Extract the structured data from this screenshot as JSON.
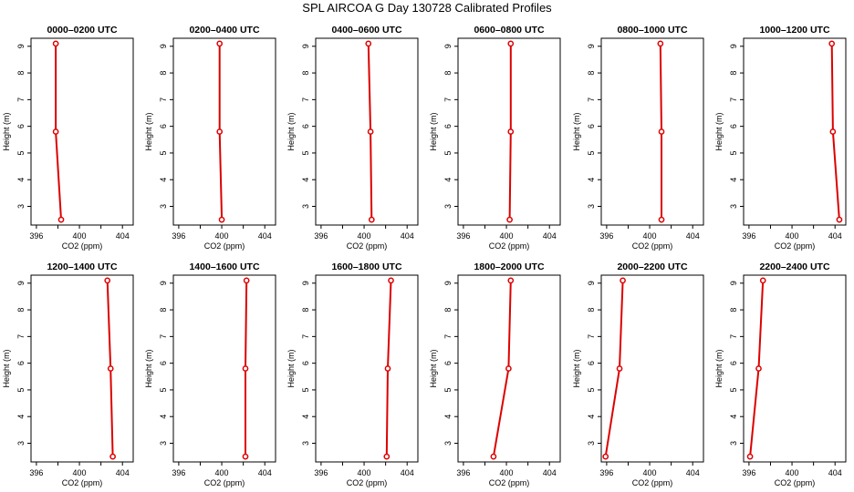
{
  "title": "SPL AIRCOA G  Day 130728  Calibrated Profiles",
  "chart_data": [
    {
      "type": "line",
      "title": "0000–0200 UTC",
      "xlabel": "CO2 (ppm)",
      "ylabel": "Height (m)",
      "xlim": [
        395.5,
        405
      ],
      "ylim": [
        2.3,
        9.3
      ],
      "xticks": [
        "396",
        "400",
        "404"
      ],
      "yticks": [
        "3",
        "4",
        "5",
        "6",
        "7",
        "8",
        "9"
      ],
      "series": [
        {
          "x": [
            398.3,
            397.8,
            397.8
          ],
          "y": [
            2.5,
            5.8,
            9.1
          ]
        }
      ]
    },
    {
      "type": "line",
      "title": "0200–0400 UTC",
      "xlabel": "CO2 (ppm)",
      "ylabel": "Height (m)",
      "xlim": [
        395.5,
        405
      ],
      "ylim": [
        2.3,
        9.3
      ],
      "xticks": [
        "396",
        "400",
        "404"
      ],
      "yticks": [
        "3",
        "4",
        "5",
        "6",
        "7",
        "8",
        "9"
      ],
      "series": [
        {
          "x": [
            400.0,
            399.8,
            399.8
          ],
          "y": [
            2.5,
            5.8,
            9.1
          ]
        }
      ]
    },
    {
      "type": "line",
      "title": "0400–0600 UTC",
      "xlabel": "CO2 (ppm)",
      "ylabel": "Height (m)",
      "xlim": [
        395.5,
        405
      ],
      "ylim": [
        2.3,
        9.3
      ],
      "xticks": [
        "396",
        "400",
        "404"
      ],
      "yticks": [
        "3",
        "4",
        "5",
        "6",
        "7",
        "8",
        "9"
      ],
      "series": [
        {
          "x": [
            400.7,
            400.6,
            400.4
          ],
          "y": [
            2.5,
            5.8,
            9.1
          ]
        }
      ]
    },
    {
      "type": "line",
      "title": "0600–0800 UTC",
      "xlabel": "CO2 (ppm)",
      "ylabel": "Height (m)",
      "xlim": [
        395.5,
        405
      ],
      "ylim": [
        2.3,
        9.3
      ],
      "xticks": [
        "396",
        "400",
        "404"
      ],
      "yticks": [
        "3",
        "4",
        "5",
        "6",
        "7",
        "8",
        "9"
      ],
      "series": [
        {
          "x": [
            400.3,
            400.4,
            400.4
          ],
          "y": [
            2.5,
            5.8,
            9.1
          ]
        }
      ]
    },
    {
      "type": "line",
      "title": "0800–1000 UTC",
      "xlabel": "CO2 (ppm)",
      "ylabel": "Height (m)",
      "xlim": [
        395.5,
        405
      ],
      "ylim": [
        2.3,
        9.3
      ],
      "xticks": [
        "396",
        "400",
        "404"
      ],
      "yticks": [
        "3",
        "4",
        "5",
        "6",
        "7",
        "8",
        "9"
      ],
      "series": [
        {
          "x": [
            401.1,
            401.1,
            401.0
          ],
          "y": [
            2.5,
            5.8,
            9.1
          ]
        }
      ]
    },
    {
      "type": "line",
      "title": "1000–1200 UTC",
      "xlabel": "CO2 (ppm)",
      "ylabel": "Height (m)",
      "xlim": [
        395.5,
        405
      ],
      "ylim": [
        2.3,
        9.3
      ],
      "xticks": [
        "396",
        "400",
        "404"
      ],
      "yticks": [
        "3",
        "4",
        "5",
        "6",
        "7",
        "8",
        "9"
      ],
      "series": [
        {
          "x": [
            404.4,
            403.8,
            403.7
          ],
          "y": [
            2.5,
            5.8,
            9.1
          ]
        }
      ]
    },
    {
      "type": "line",
      "title": "1200–1400 UTC",
      "xlabel": "CO2 (ppm)",
      "ylabel": "Height (m)",
      "xlim": [
        395.5,
        405
      ],
      "ylim": [
        2.3,
        9.3
      ],
      "xticks": [
        "396",
        "400",
        "404"
      ],
      "yticks": [
        "3",
        "4",
        "5",
        "6",
        "7",
        "8",
        "9"
      ],
      "series": [
        {
          "x": [
            403.1,
            402.9,
            402.6
          ],
          "y": [
            2.5,
            5.8,
            9.1
          ]
        }
      ]
    },
    {
      "type": "line",
      "title": "1400–1600 UTC",
      "xlabel": "CO2 (ppm)",
      "ylabel": "Height (m)",
      "xlim": [
        395.5,
        405
      ],
      "ylim": [
        2.3,
        9.3
      ],
      "xticks": [
        "396",
        "400",
        "404"
      ],
      "yticks": [
        "3",
        "4",
        "5",
        "6",
        "7",
        "8",
        "9"
      ],
      "series": [
        {
          "x": [
            402.2,
            402.2,
            402.3
          ],
          "y": [
            2.5,
            5.8,
            9.1
          ]
        }
      ]
    },
    {
      "type": "line",
      "title": "1600–1800 UTC",
      "xlabel": "CO2 (ppm)",
      "ylabel": "Height (m)",
      "xlim": [
        395.5,
        405
      ],
      "ylim": [
        2.3,
        9.3
      ],
      "xticks": [
        "396",
        "400",
        "404"
      ],
      "yticks": [
        "3",
        "4",
        "5",
        "6",
        "7",
        "8",
        "9"
      ],
      "series": [
        {
          "x": [
            402.1,
            402.2,
            402.5
          ],
          "y": [
            2.5,
            5.8,
            9.1
          ]
        }
      ]
    },
    {
      "type": "line",
      "title": "1800–2000 UTC",
      "xlabel": "CO2 (ppm)",
      "ylabel": "Height (m)",
      "xlim": [
        395.5,
        405
      ],
      "ylim": [
        2.3,
        9.3
      ],
      "xticks": [
        "396",
        "400",
        "404"
      ],
      "yticks": [
        "3",
        "4",
        "5",
        "6",
        "7",
        "8",
        "9"
      ],
      "series": [
        {
          "x": [
            398.8,
            400.2,
            400.4
          ],
          "y": [
            2.5,
            5.8,
            9.1
          ]
        }
      ]
    },
    {
      "type": "line",
      "title": "2000–2200 UTC",
      "xlabel": "CO2 (ppm)",
      "ylabel": "Height (m)",
      "xlim": [
        395.5,
        405
      ],
      "ylim": [
        2.3,
        9.3
      ],
      "xticks": [
        "396",
        "400",
        "404"
      ],
      "yticks": [
        "3",
        "4",
        "5",
        "6",
        "7",
        "8",
        "9"
      ],
      "series": [
        {
          "x": [
            395.9,
            397.2,
            397.5
          ],
          "y": [
            2.5,
            5.8,
            9.1
          ]
        }
      ]
    },
    {
      "type": "line",
      "title": "2200–2400 UTC",
      "xlabel": "CO2 (ppm)",
      "ylabel": "Height (m)",
      "xlim": [
        395.5,
        405
      ],
      "ylim": [
        2.3,
        9.3
      ],
      "xticks": [
        "396",
        "400",
        "404"
      ],
      "yticks": [
        "3",
        "4",
        "5",
        "6",
        "7",
        "8",
        "9"
      ],
      "series": [
        {
          "x": [
            396.1,
            396.9,
            397.3
          ],
          "y": [
            2.5,
            5.8,
            9.1
          ]
        }
      ]
    }
  ],
  "colors": {
    "series_line": "#dd0000",
    "axis": "#000000"
  }
}
